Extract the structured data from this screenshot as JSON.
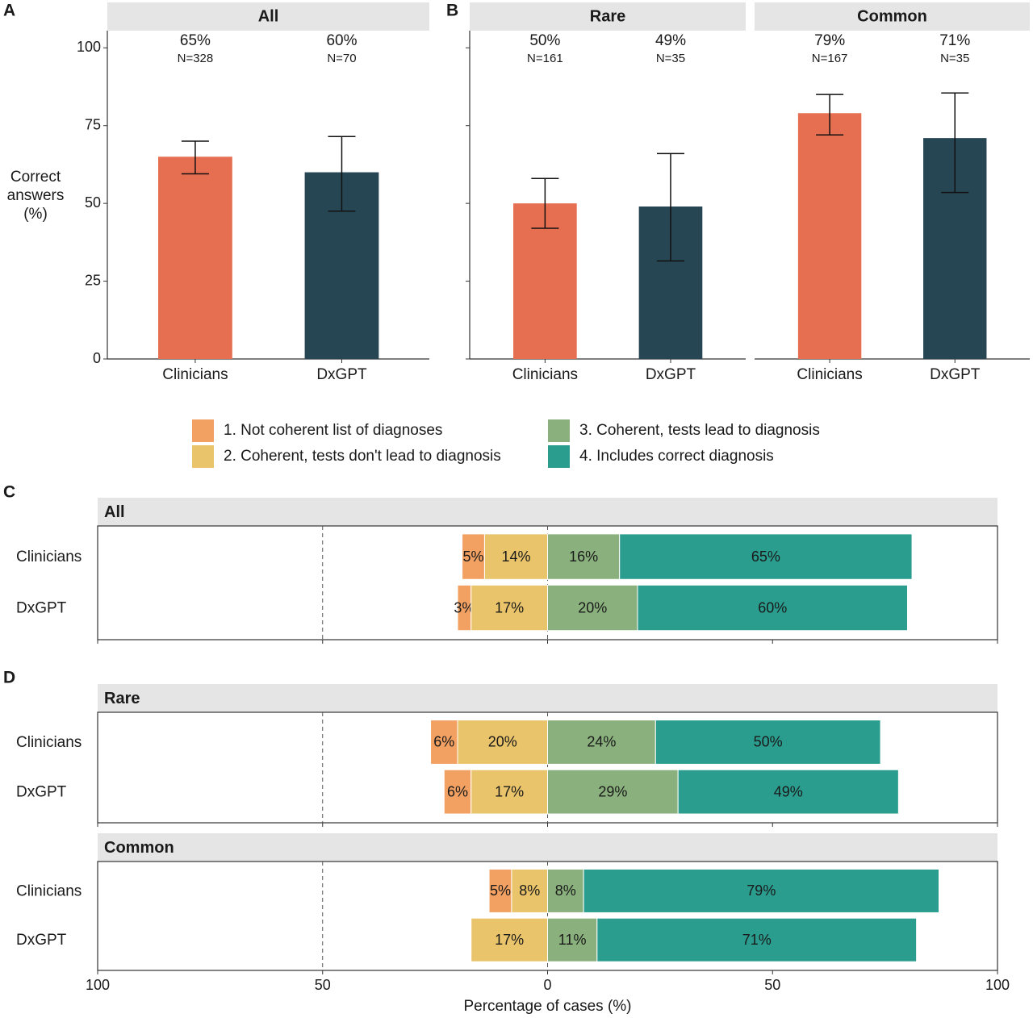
{
  "panel_labels": [
    "A",
    "B",
    "C",
    "D"
  ],
  "legend": [
    {
      "name": "1. Not coherent list of diagnoses",
      "color": "#f2a162"
    },
    {
      "name": "2. Coherent, tests don't lead to diagnosis",
      "color": "#e9c46a"
    },
    {
      "name": "3. Coherent, tests lead to diagnosis",
      "color": "#8ab17d"
    },
    {
      "name": "4. Includes correct diagnosis",
      "color": "#2a9d8f"
    }
  ],
  "chart_data": [
    {
      "type": "bar",
      "facet": "All",
      "ylabel": [
        "Correct",
        "answers",
        "(%)"
      ],
      "categories": [
        "Clinicians",
        "DxGPT"
      ],
      "values": [
        65,
        60
      ],
      "value_labels": [
        "65%",
        "60%"
      ],
      "n_labels": [
        "N=328",
        "N=70"
      ],
      "ci_low": [
        59.5,
        47.5
      ],
      "ci_high": [
        70,
        71.5
      ],
      "colors": [
        "#e76f51",
        "#264653"
      ],
      "ylim": [
        0,
        105
      ],
      "yticks": [
        0,
        25,
        50,
        75,
        100
      ]
    },
    {
      "type": "bar",
      "facet": "Rare",
      "categories": [
        "Clinicians",
        "DxGPT"
      ],
      "values": [
        50,
        49
      ],
      "value_labels": [
        "50%",
        "49%"
      ],
      "n_labels": [
        "N=161",
        "N=35"
      ],
      "ci_low": [
        42,
        31.5
      ],
      "ci_high": [
        58,
        66
      ],
      "colors": [
        "#e76f51",
        "#264653"
      ],
      "ylim": [
        0,
        105
      ],
      "yticks": [
        0,
        25,
        50,
        75,
        100
      ]
    },
    {
      "type": "bar",
      "facet": "Common",
      "categories": [
        "Clinicians",
        "DxGPT"
      ],
      "values": [
        79,
        71
      ],
      "value_labels": [
        "79%",
        "71%"
      ],
      "n_labels": [
        "N=167",
        "N=35"
      ],
      "ci_low": [
        72,
        53.5
      ],
      "ci_high": [
        85,
        85.5
      ],
      "colors": [
        "#e76f51",
        "#264653"
      ],
      "ylim": [
        0,
        105
      ]
    },
    {
      "type": "diverging_bar",
      "facet": "All",
      "categories": [
        "Clinicians",
        "DxGPT"
      ],
      "series": [
        {
          "values": [
            5,
            3
          ],
          "value_labels": [
            "5%",
            "3%"
          ]
        },
        {
          "values": [
            14,
            17
          ],
          "value_labels": [
            "14%",
            "17%"
          ]
        },
        {
          "values": [
            16,
            20
          ],
          "value_labels": [
            "16%",
            "20%"
          ]
        },
        {
          "values": [
            65,
            60
          ],
          "value_labels": [
            "65%",
            "60%"
          ]
        }
      ],
      "xlim": [
        -100,
        100
      ],
      "dashed_lines": [
        -50,
        0
      ],
      "xticks": [
        {
          "value": -100,
          "label": "100"
        },
        {
          "value": -50,
          "label": "50"
        },
        0,
        50,
        100
      ]
    },
    {
      "type": "diverging_bar",
      "facet": "Rare",
      "categories": [
        "Clinicians",
        "DxGPT"
      ],
      "series": [
        {
          "values": [
            6,
            6
          ],
          "value_labels": [
            "6%",
            "6%"
          ]
        },
        {
          "values": [
            20,
            17
          ],
          "value_labels": [
            "20%",
            "17%"
          ]
        },
        {
          "values": [
            24,
            29
          ],
          "value_labels": [
            "24%",
            "29%"
          ]
        },
        {
          "values": [
            50,
            49
          ],
          "value_labels": [
            "50%",
            "49%"
          ]
        }
      ],
      "xlim": [
        -100,
        100
      ],
      "dashed_lines": [
        -50,
        0
      ],
      "xticks": [
        {
          "value": -100,
          "label": "100"
        },
        {
          "value": -50,
          "label": "50"
        },
        0,
        50,
        100
      ]
    },
    {
      "type": "diverging_bar",
      "facet": "Common",
      "categories": [
        "Clinicians",
        "DxGPT"
      ],
      "series": [
        {
          "values": [
            5,
            0
          ],
          "value_labels": [
            "5%",
            null
          ]
        },
        {
          "values": [
            8,
            17
          ],
          "value_labels": [
            "8%",
            "17%"
          ]
        },
        {
          "values": [
            8,
            11
          ],
          "value_labels": [
            "8%",
            "11%"
          ]
        },
        {
          "values": [
            79,
            71
          ],
          "value_labels": [
            "79%",
            "71%"
          ]
        }
      ],
      "xlim": [
        -100,
        100
      ],
      "dashed_lines": [
        -50,
        0
      ],
      "xticks": [
        {
          "value": -100,
          "label": "100"
        },
        {
          "value": -50,
          "label": "50"
        },
        0,
        50,
        100
      ],
      "xlabel": "Percentage of cases (%)"
    }
  ]
}
